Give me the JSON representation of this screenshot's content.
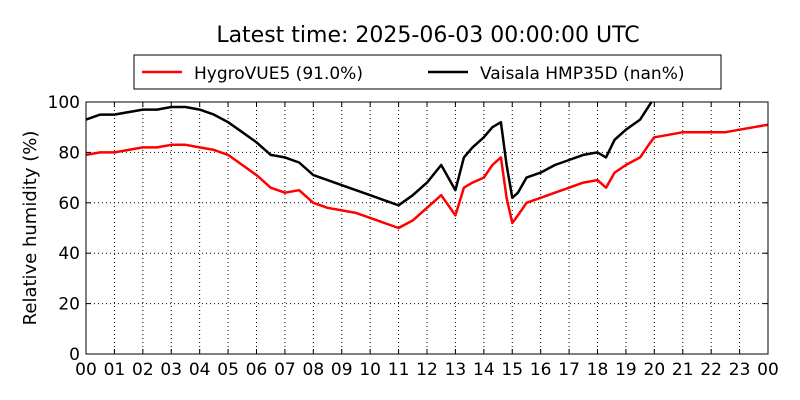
{
  "chart_data": {
    "type": "line",
    "title": "Latest time: 2025-06-03 00:00:00 UTC",
    "xlabel": "",
    "ylabel": "Relative humidity (%)",
    "xlim": [
      0,
      24
    ],
    "ylim": [
      0,
      100
    ],
    "grid": true,
    "legend_position": "top",
    "x_tick_labels": [
      "00",
      "01",
      "02",
      "03",
      "04",
      "05",
      "06",
      "07",
      "08",
      "09",
      "10",
      "11",
      "12",
      "13",
      "14",
      "15",
      "16",
      "17",
      "18",
      "19",
      "20",
      "21",
      "22",
      "23",
      "00"
    ],
    "y_ticks": [
      0,
      20,
      40,
      60,
      80,
      100
    ],
    "series": [
      {
        "name": "HygroVUE5 (91.0%)",
        "color": "#ff0000",
        "x": [
          0,
          0.5,
          1,
          1.5,
          2,
          2.5,
          3,
          3.5,
          4,
          4.5,
          5,
          5.5,
          6,
          6.5,
          7,
          7.5,
          8,
          8.5,
          9,
          9.5,
          10,
          10.5,
          11,
          11.5,
          12,
          12.5,
          13,
          13.3,
          13.6,
          14,
          14.3,
          14.6,
          14.8,
          15,
          15.2,
          15.5,
          16,
          16.5,
          17,
          17.5,
          18,
          18.3,
          18.6,
          19,
          19.5,
          19.8,
          20,
          20.5,
          21,
          21.5,
          22,
          22.5,
          23,
          23.5,
          24
        ],
        "y": [
          79,
          80,
          80,
          81,
          82,
          82,
          83,
          83,
          82,
          81,
          79,
          75,
          71,
          66,
          64,
          65,
          60,
          58,
          57,
          56,
          54,
          52,
          50,
          53,
          58,
          63,
          55,
          66,
          68,
          70,
          75,
          78,
          62,
          52,
          55,
          60,
          62,
          64,
          66,
          68,
          69,
          66,
          72,
          75,
          78,
          83,
          86,
          87,
          88,
          88,
          88,
          88,
          89,
          90,
          91
        ]
      },
      {
        "name": "Vaisala HMP35D (nan%)",
        "color": "#000000",
        "x": [
          0,
          0.5,
          1,
          1.5,
          2,
          2.5,
          3,
          3.5,
          4,
          4.5,
          5,
          5.5,
          6,
          6.5,
          7,
          7.5,
          8,
          8.5,
          9,
          9.5,
          10,
          10.5,
          11,
          11.5,
          12,
          12.5,
          13,
          13.3,
          13.6,
          14,
          14.3,
          14.6,
          14.8,
          15,
          15.2,
          15.5,
          16,
          16.5,
          17,
          17.5,
          18,
          18.3,
          18.6,
          19,
          19.5,
          19.9
        ],
        "y": [
          93,
          95,
          95,
          96,
          97,
          97,
          98,
          98,
          97,
          95,
          92,
          88,
          84,
          79,
          78,
          76,
          71,
          69,
          67,
          65,
          63,
          61,
          59,
          63,
          68,
          75,
          65,
          78,
          82,
          86,
          90,
          92,
          75,
          62,
          64,
          70,
          72,
          75,
          77,
          79,
          80,
          78,
          85,
          89,
          93,
          100
        ]
      }
    ]
  }
}
